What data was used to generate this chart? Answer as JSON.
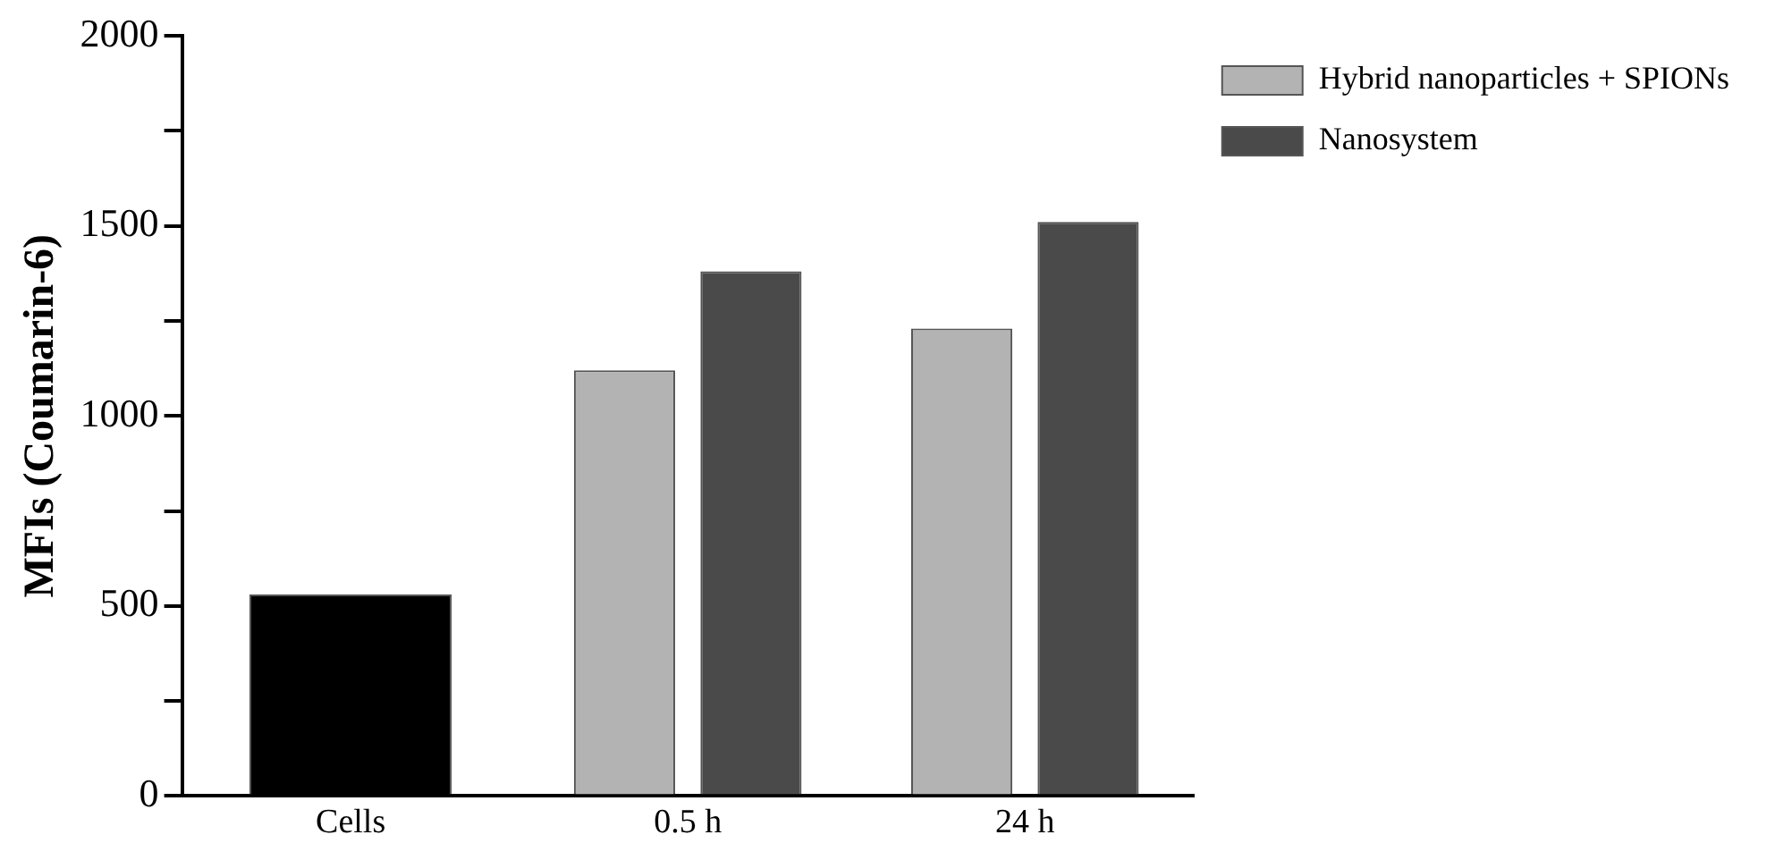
{
  "chart_data": {
    "type": "bar",
    "ylabel": "MFIs (Coumarin-6)",
    "categories": [
      "Cells",
      "0.5 h",
      "24 h"
    ],
    "series": [
      {
        "color": "#000000",
        "values": [
          530,
          null,
          null
        ]
      },
      {
        "name": "Hybrid nanoparticles + SPIONs",
        "color": "#b3b3b3",
        "values": [
          null,
          1120,
          1230
        ]
      },
      {
        "name": "Nanosystem",
        "color": "#4a4a4a",
        "values": [
          null,
          1380,
          1510
        ]
      }
    ],
    "ylim": [
      0,
      2000
    ],
    "yticks": [
      0,
      {
        "value": 250,
        "label": null
      },
      500,
      {
        "value": 750,
        "label": null
      },
      1000,
      {
        "value": 1250,
        "label": null
      },
      1500,
      {
        "value": 1750,
        "label": null
      },
      2000
    ],
    "grid": false,
    "legend": "top right"
  }
}
